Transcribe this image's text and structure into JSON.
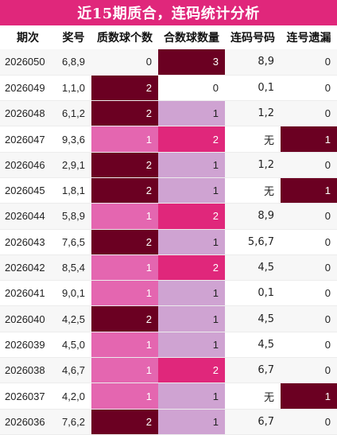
{
  "title": "近15期质合，连码统计分析",
  "columns": [
    "期次",
    "奖号",
    "质数球个数",
    "合数球数量",
    "连码号码",
    "连号遗漏"
  ],
  "colors": {
    "header": "#e0277b",
    "dark": "#6b0022",
    "pink": "#e466b0",
    "magenta": "#e0277b",
    "lilac": "#cfa3d2",
    "white": "#ffffff"
  },
  "rows": [
    {
      "period": "2026050",
      "prize": "6,8,9",
      "prime": "0",
      "composite": "3",
      "consec": "8,9",
      "miss": "0",
      "prime_shade": "white",
      "composite_shade": "dark",
      "miss_shade": "white"
    },
    {
      "period": "2026049",
      "prize": "1,1,0",
      "prime": "2",
      "composite": "0",
      "consec": "0,1",
      "miss": "0",
      "prime_shade": "dark",
      "composite_shade": "white",
      "miss_shade": "white"
    },
    {
      "period": "2026048",
      "prize": "6,1,2",
      "prime": "2",
      "composite": "1",
      "consec": "1,2",
      "miss": "0",
      "prime_shade": "dark",
      "composite_shade": "lilac",
      "miss_shade": "white"
    },
    {
      "period": "2026047",
      "prize": "9,3,6",
      "prime": "1",
      "composite": "2",
      "consec": "无",
      "miss": "1",
      "prime_shade": "pink",
      "composite_shade": "magenta",
      "miss_shade": "dark"
    },
    {
      "period": "2026046",
      "prize": "2,9,1",
      "prime": "2",
      "composite": "1",
      "consec": "1,2",
      "miss": "0",
      "prime_shade": "dark",
      "composite_shade": "lilac",
      "miss_shade": "white"
    },
    {
      "period": "2026045",
      "prize": "1,8,1",
      "prime": "2",
      "composite": "1",
      "consec": "无",
      "miss": "1",
      "prime_shade": "dark",
      "composite_shade": "lilac",
      "miss_shade": "dark"
    },
    {
      "period": "2026044",
      "prize": "5,8,9",
      "prime": "1",
      "composite": "2",
      "consec": "8,9",
      "miss": "0",
      "prime_shade": "pink",
      "composite_shade": "magenta",
      "miss_shade": "white"
    },
    {
      "period": "2026043",
      "prize": "7,6,5",
      "prime": "2",
      "composite": "1",
      "consec": "5,6,7",
      "miss": "0",
      "prime_shade": "dark",
      "composite_shade": "lilac",
      "miss_shade": "white"
    },
    {
      "period": "2026042",
      "prize": "8,5,4",
      "prime": "1",
      "composite": "2",
      "consec": "4,5",
      "miss": "0",
      "prime_shade": "pink",
      "composite_shade": "magenta",
      "miss_shade": "white"
    },
    {
      "period": "2026041",
      "prize": "9,0,1",
      "prime": "1",
      "composite": "1",
      "consec": "0,1",
      "miss": "0",
      "prime_shade": "pink",
      "composite_shade": "lilac",
      "miss_shade": "white"
    },
    {
      "period": "2026040",
      "prize": "4,2,5",
      "prime": "2",
      "composite": "1",
      "consec": "4,5",
      "miss": "0",
      "prime_shade": "dark",
      "composite_shade": "lilac",
      "miss_shade": "white"
    },
    {
      "period": "2026039",
      "prize": "4,5,0",
      "prime": "1",
      "composite": "1",
      "consec": "4,5",
      "miss": "0",
      "prime_shade": "pink",
      "composite_shade": "lilac",
      "miss_shade": "white"
    },
    {
      "period": "2026038",
      "prize": "4,6,7",
      "prime": "1",
      "composite": "2",
      "consec": "6,7",
      "miss": "0",
      "prime_shade": "pink",
      "composite_shade": "magenta",
      "miss_shade": "white"
    },
    {
      "period": "2026037",
      "prize": "4,2,0",
      "prime": "1",
      "composite": "1",
      "consec": "无",
      "miss": "1",
      "prime_shade": "pink",
      "composite_shade": "lilac",
      "miss_shade": "dark"
    },
    {
      "period": "2026036",
      "prize": "7,6,2",
      "prime": "2",
      "composite": "1",
      "consec": "6,7",
      "miss": "0",
      "prime_shade": "dark",
      "composite_shade": "lilac",
      "miss_shade": "white"
    }
  ]
}
